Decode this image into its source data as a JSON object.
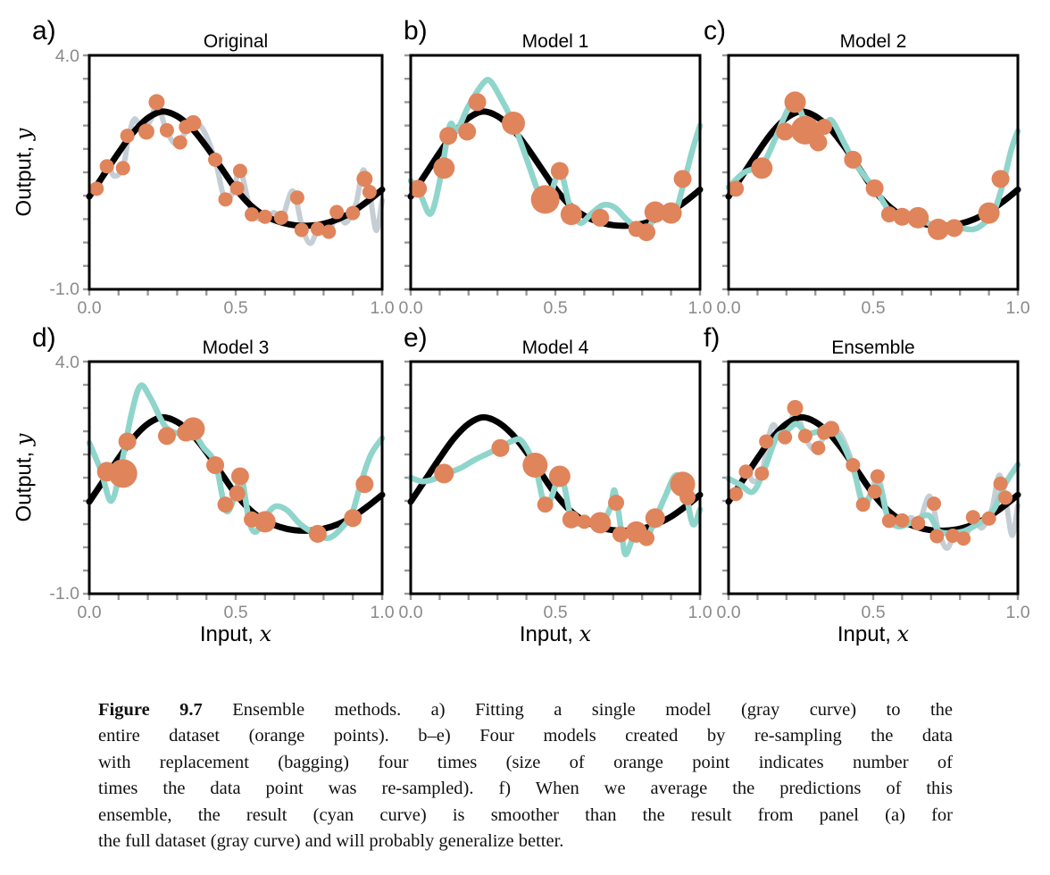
{
  "colors": {
    "black_curve": "#000000",
    "gray_curve": "#c6ced5",
    "cyan_curve": "#8fd5cc",
    "point_fill": "#e0845b",
    "axis": "#000000",
    "tick": "#999999",
    "tick_label": "#8a8a8a"
  },
  "axes": {
    "xlim": [
      0,
      1
    ],
    "ylim": [
      -1,
      4
    ],
    "x_tick_labels": [
      "0.0",
      "0.5",
      "1.0"
    ],
    "y_tick_top": "4.0",
    "y_tick_bottom": "-1.0",
    "x_minor_step": 0.1,
    "y_minor_step": 0.5,
    "xlabel_text": "Input, ",
    "xlabel_var": "x",
    "ylabel_text": "Output, ",
    "ylabel_var": "y"
  },
  "shared_curves": {
    "true_function": [
      [
        0,
        0.98
      ],
      [
        0.05,
        1.45
      ],
      [
        0.1,
        1.92
      ],
      [
        0.15,
        2.35
      ],
      [
        0.2,
        2.66
      ],
      [
        0.25,
        2.8
      ],
      [
        0.3,
        2.7
      ],
      [
        0.35,
        2.44
      ],
      [
        0.4,
        2.05
      ],
      [
        0.45,
        1.6
      ],
      [
        0.5,
        1.15
      ],
      [
        0.55,
        0.8
      ],
      [
        0.6,
        0.57
      ],
      [
        0.65,
        0.44
      ],
      [
        0.7,
        0.37
      ],
      [
        0.75,
        0.36
      ],
      [
        0.8,
        0.4
      ],
      [
        0.85,
        0.5
      ],
      [
        0.9,
        0.66
      ],
      [
        0.95,
        0.88
      ],
      [
        1,
        1.13
      ]
    ],
    "gray_fit": [
      [
        0,
        1.0
      ],
      [
        0.03,
        1.18
      ],
      [
        0.06,
        1.66
      ],
      [
        0.085,
        1.42
      ],
      [
        0.115,
        1.6
      ],
      [
        0.135,
        2.28
      ],
      [
        0.155,
        2.64
      ],
      [
        0.18,
        2.4
      ],
      [
        0.21,
        2.62
      ],
      [
        0.232,
        2.98
      ],
      [
        0.26,
        2.45
      ],
      [
        0.29,
        2.12
      ],
      [
        0.315,
        2.22
      ],
      [
        0.34,
        2.5
      ],
      [
        0.36,
        2.56
      ],
      [
        0.39,
        2.4
      ],
      [
        0.43,
        1.76
      ],
      [
        0.463,
        0.9
      ],
      [
        0.49,
        1.08
      ],
      [
        0.515,
        1.54
      ],
      [
        0.545,
        0.82
      ],
      [
        0.567,
        0.55
      ],
      [
        0.6,
        0.5
      ],
      [
        0.63,
        0.64
      ],
      [
        0.658,
        0.52
      ],
      [
        0.695,
        1.1
      ],
      [
        0.727,
        0.33
      ],
      [
        0.755,
        -0.02
      ],
      [
        0.785,
        0.32
      ],
      [
        0.818,
        0.22
      ],
      [
        0.848,
        0.66
      ],
      [
        0.875,
        0.42
      ],
      [
        0.91,
        0.82
      ],
      [
        0.935,
        1.55
      ],
      [
        0.958,
        1.02
      ],
      [
        0.98,
        0.26
      ],
      [
        1,
        0.9
      ]
    ],
    "model_1": [
      [
        0,
        1.32
      ],
      [
        0.035,
        1.0
      ],
      [
        0.07,
        0.62
      ],
      [
        0.105,
        1.45
      ],
      [
        0.135,
        2.5
      ],
      [
        0.16,
        2.4
      ],
      [
        0.2,
        2.92
      ],
      [
        0.25,
        3.4
      ],
      [
        0.275,
        3.45
      ],
      [
        0.31,
        3.1
      ],
      [
        0.355,
        2.55
      ],
      [
        0.4,
        1.8
      ],
      [
        0.44,
        1.1
      ],
      [
        0.47,
        0.82
      ],
      [
        0.515,
        1.5
      ],
      [
        0.55,
        0.78
      ],
      [
        0.585,
        0.42
      ],
      [
        0.625,
        0.62
      ],
      [
        0.665,
        0.8
      ],
      [
        0.705,
        0.75
      ],
      [
        0.745,
        0.5
      ],
      [
        0.785,
        0.3
      ],
      [
        0.818,
        0.26
      ],
      [
        0.848,
        0.62
      ],
      [
        0.885,
        0.68
      ],
      [
        0.915,
        0.66
      ],
      [
        0.945,
        1.3
      ],
      [
        0.975,
        2.0
      ],
      [
        1,
        2.5
      ]
    ],
    "model_2": [
      [
        0,
        1.18
      ],
      [
        0.05,
        1.48
      ],
      [
        0.09,
        1.58
      ],
      [
        0.118,
        1.65
      ],
      [
        0.16,
        2.2
      ],
      [
        0.2,
        2.78
      ],
      [
        0.23,
        3.05
      ],
      [
        0.268,
        2.5
      ],
      [
        0.3,
        2.12
      ],
      [
        0.335,
        2.5
      ],
      [
        0.358,
        2.6
      ],
      [
        0.4,
        2.12
      ],
      [
        0.43,
        1.78
      ],
      [
        0.47,
        1.42
      ],
      [
        0.51,
        1.12
      ],
      [
        0.558,
        0.66
      ],
      [
        0.61,
        0.53
      ],
      [
        0.665,
        0.5
      ],
      [
        0.725,
        0.3
      ],
      [
        0.785,
        0.32
      ],
      [
        0.845,
        0.28
      ],
      [
        0.885,
        0.42
      ],
      [
        0.915,
        0.62
      ],
      [
        0.948,
        1.25
      ],
      [
        0.978,
        2.0
      ],
      [
        1,
        2.38
      ]
    ],
    "model_3": [
      [
        0,
        2.25
      ],
      [
        0.04,
        1.65
      ],
      [
        0.075,
        1.0
      ],
      [
        0.11,
        1.8
      ],
      [
        0.145,
        2.9
      ],
      [
        0.175,
        3.48
      ],
      [
        0.21,
        3.2
      ],
      [
        0.26,
        2.6
      ],
      [
        0.31,
        2.45
      ],
      [
        0.35,
        2.5
      ],
      [
        0.39,
        2.15
      ],
      [
        0.432,
        1.78
      ],
      [
        0.468,
        0.78
      ],
      [
        0.503,
        1.25
      ],
      [
        0.518,
        1.6
      ],
      [
        0.545,
        0.6
      ],
      [
        0.568,
        0.33
      ],
      [
        0.6,
        0.65
      ],
      [
        0.635,
        0.88
      ],
      [
        0.675,
        0.8
      ],
      [
        0.72,
        0.5
      ],
      [
        0.77,
        0.3
      ],
      [
        0.818,
        0.2
      ],
      [
        0.862,
        0.42
      ],
      [
        0.898,
        0.75
      ],
      [
        0.928,
        1.4
      ],
      [
        0.962,
        2.0
      ],
      [
        1,
        2.35
      ]
    ],
    "model_4": [
      [
        0,
        1.5
      ],
      [
        0.04,
        1.42
      ],
      [
        0.08,
        1.47
      ],
      [
        0.115,
        1.57
      ],
      [
        0.17,
        1.7
      ],
      [
        0.22,
        1.88
      ],
      [
        0.27,
        2.03
      ],
      [
        0.31,
        2.15
      ],
      [
        0.355,
        2.3
      ],
      [
        0.385,
        2.28
      ],
      [
        0.43,
        1.75
      ],
      [
        0.468,
        0.88
      ],
      [
        0.518,
        1.52
      ],
      [
        0.553,
        0.68
      ],
      [
        0.585,
        0.5
      ],
      [
        0.62,
        0.55
      ],
      [
        0.658,
        0.5
      ],
      [
        0.69,
        0.85
      ],
      [
        0.705,
        1.22
      ],
      [
        0.728,
        0.35
      ],
      [
        0.742,
        -0.15
      ],
      [
        0.765,
        0.15
      ],
      [
        0.785,
        0.33
      ],
      [
        0.81,
        0.13
      ],
      [
        0.845,
        0.6
      ],
      [
        0.88,
        1.1
      ],
      [
        0.915,
        1.55
      ],
      [
        0.945,
        1.33
      ],
      [
        0.975,
        0.5
      ],
      [
        1,
        0.82
      ]
    ],
    "ensemble": [
      [
        0,
        1.48
      ],
      [
        0.04,
        1.35
      ],
      [
        0.085,
        1.2
      ],
      [
        0.125,
        1.7
      ],
      [
        0.165,
        2.36
      ],
      [
        0.2,
        2.5
      ],
      [
        0.235,
        2.66
      ],
      [
        0.27,
        2.46
      ],
      [
        0.31,
        2.5
      ],
      [
        0.345,
        2.6
      ],
      [
        0.385,
        2.33
      ],
      [
        0.43,
        1.72
      ],
      [
        0.467,
        0.98
      ],
      [
        0.518,
        1.36
      ],
      [
        0.55,
        0.65
      ],
      [
        0.585,
        0.45
      ],
      [
        0.63,
        0.53
      ],
      [
        0.69,
        0.69
      ],
      [
        0.727,
        0.35
      ],
      [
        0.772,
        0.31
      ],
      [
        0.81,
        0.34
      ],
      [
        0.845,
        0.44
      ],
      [
        0.885,
        0.6
      ],
      [
        0.92,
        0.85
      ],
      [
        0.955,
        1.35
      ],
      [
        1,
        1.78
      ]
    ]
  },
  "chart_data": [
    {
      "type": "line+scatter",
      "letter": "a)",
      "title": "Original",
      "show_y_labels": true,
      "curves": [
        {
          "ref": "gray_fit",
          "color": "gray_curve",
          "width": 6
        },
        {
          "ref": "true_function",
          "color": "black_curve",
          "width": 7
        }
      ],
      "scatter": [
        [
          0.025,
          1.15,
          8
        ],
        [
          0.06,
          1.63,
          8
        ],
        [
          0.115,
          1.59,
          8
        ],
        [
          0.13,
          2.28,
          8
        ],
        [
          0.195,
          2.37,
          9
        ],
        [
          0.23,
          3.0,
          9
        ],
        [
          0.265,
          2.4,
          8
        ],
        [
          0.31,
          2.14,
          8
        ],
        [
          0.33,
          2.47,
          8
        ],
        [
          0.355,
          2.55,
          9
        ],
        [
          0.43,
          1.77,
          8
        ],
        [
          0.465,
          0.92,
          8
        ],
        [
          0.505,
          1.16,
          8
        ],
        [
          0.515,
          1.53,
          8
        ],
        [
          0.555,
          0.6,
          8
        ],
        [
          0.6,
          0.55,
          8
        ],
        [
          0.655,
          0.53,
          8
        ],
        [
          0.71,
          0.96,
          8
        ],
        [
          0.725,
          0.27,
          8
        ],
        [
          0.78,
          0.29,
          8
        ],
        [
          0.818,
          0.23,
          8
        ],
        [
          0.845,
          0.65,
          8
        ],
        [
          0.9,
          0.63,
          8
        ],
        [
          0.94,
          1.36,
          9
        ],
        [
          0.957,
          1.08,
          8
        ]
      ]
    },
    {
      "type": "line+scatter",
      "letter": "b)",
      "title": "Model 1",
      "show_y_labels": false,
      "curves": [
        {
          "ref": "true_function",
          "color": "black_curve",
          "width": 7
        },
        {
          "ref": "model_1",
          "color": "cyan_curve",
          "width": 6.5
        }
      ],
      "scatter": [
        [
          0.025,
          1.15,
          10
        ],
        [
          0.115,
          1.59,
          12
        ],
        [
          0.13,
          2.28,
          10
        ],
        [
          0.195,
          2.37,
          10
        ],
        [
          0.23,
          3.0,
          10
        ],
        [
          0.355,
          2.55,
          13
        ],
        [
          0.465,
          0.92,
          16
        ],
        [
          0.515,
          1.53,
          10
        ],
        [
          0.555,
          0.6,
          12
        ],
        [
          0.655,
          0.53,
          10
        ],
        [
          0.78,
          0.29,
          9
        ],
        [
          0.815,
          0.22,
          10
        ],
        [
          0.845,
          0.65,
          12
        ],
        [
          0.9,
          0.63,
          12
        ],
        [
          0.94,
          1.36,
          10
        ]
      ]
    },
    {
      "type": "line+scatter",
      "letter": "c)",
      "title": "Model 2",
      "show_y_labels": false,
      "curves": [
        {
          "ref": "true_function",
          "color": "black_curve",
          "width": 7
        },
        {
          "ref": "model_2",
          "color": "cyan_curve",
          "width": 6.5
        }
      ],
      "scatter": [
        [
          0.025,
          1.15,
          9
        ],
        [
          0.115,
          1.59,
          12
        ],
        [
          0.195,
          2.37,
          10
        ],
        [
          0.23,
          3.0,
          12
        ],
        [
          0.265,
          2.4,
          16
        ],
        [
          0.31,
          2.14,
          10
        ],
        [
          0.33,
          2.47,
          9
        ],
        [
          0.43,
          1.77,
          10
        ],
        [
          0.505,
          1.16,
          10
        ],
        [
          0.555,
          0.6,
          9
        ],
        [
          0.6,
          0.55,
          10
        ],
        [
          0.655,
          0.53,
          12
        ],
        [
          0.725,
          0.28,
          12
        ],
        [
          0.78,
          0.31,
          10
        ],
        [
          0.9,
          0.63,
          12
        ],
        [
          0.94,
          1.36,
          10
        ]
      ]
    },
    {
      "type": "line+scatter",
      "letter": "d)",
      "title": "Model 3",
      "show_y_labels": true,
      "curves": [
        {
          "ref": "true_function",
          "color": "black_curve",
          "width": 7
        },
        {
          "ref": "model_3",
          "color": "cyan_curve",
          "width": 6.5
        }
      ],
      "scatter": [
        [
          0.06,
          1.63,
          11
        ],
        [
          0.115,
          1.59,
          16
        ],
        [
          0.13,
          2.28,
          10
        ],
        [
          0.265,
          2.4,
          10
        ],
        [
          0.33,
          2.47,
          10
        ],
        [
          0.355,
          2.55,
          13
        ],
        [
          0.43,
          1.77,
          10
        ],
        [
          0.465,
          0.92,
          9
        ],
        [
          0.505,
          1.16,
          9
        ],
        [
          0.515,
          1.53,
          10
        ],
        [
          0.555,
          0.6,
          9
        ],
        [
          0.6,
          0.55,
          12
        ],
        [
          0.78,
          0.29,
          10
        ],
        [
          0.9,
          0.63,
          10
        ],
        [
          0.94,
          1.36,
          10
        ]
      ]
    },
    {
      "type": "line+scatter",
      "letter": "e)",
      "title": "Model 4",
      "show_y_labels": false,
      "curves": [
        {
          "ref": "true_function",
          "color": "black_curve",
          "width": 7
        },
        {
          "ref": "model_4",
          "color": "cyan_curve",
          "width": 6.5
        }
      ],
      "scatter": [
        [
          0.115,
          1.59,
          11
        ],
        [
          0.31,
          2.14,
          10
        ],
        [
          0.43,
          1.77,
          14
        ],
        [
          0.465,
          0.92,
          9
        ],
        [
          0.515,
          1.53,
          12
        ],
        [
          0.555,
          0.6,
          10
        ],
        [
          0.6,
          0.55,
          8
        ],
        [
          0.655,
          0.53,
          12
        ],
        [
          0.71,
          0.96,
          9
        ],
        [
          0.725,
          0.28,
          9
        ],
        [
          0.78,
          0.33,
          12
        ],
        [
          0.815,
          0.2,
          9
        ],
        [
          0.845,
          0.63,
          11
        ],
        [
          0.94,
          1.36,
          14
        ],
        [
          0.957,
          1.08,
          9
        ]
      ]
    },
    {
      "type": "line+scatter",
      "letter": "f)",
      "title": "Ensemble",
      "show_y_labels": false,
      "curves": [
        {
          "ref": "gray_fit",
          "color": "gray_curve",
          "width": 6
        },
        {
          "ref": "true_function",
          "color": "black_curve",
          "width": 7
        },
        {
          "ref": "ensemble",
          "color": "cyan_curve",
          "width": 6.5
        }
      ],
      "scatter": [
        [
          0.025,
          1.15,
          8
        ],
        [
          0.06,
          1.63,
          8
        ],
        [
          0.115,
          1.59,
          8
        ],
        [
          0.13,
          2.28,
          8
        ],
        [
          0.195,
          2.37,
          8
        ],
        [
          0.23,
          3.0,
          9
        ],
        [
          0.265,
          2.4,
          8
        ],
        [
          0.31,
          2.14,
          8
        ],
        [
          0.33,
          2.47,
          8
        ],
        [
          0.355,
          2.55,
          9
        ],
        [
          0.43,
          1.77,
          8
        ],
        [
          0.465,
          0.92,
          8
        ],
        [
          0.505,
          1.2,
          8
        ],
        [
          0.515,
          1.53,
          8
        ],
        [
          0.555,
          0.57,
          8
        ],
        [
          0.6,
          0.58,
          8
        ],
        [
          0.655,
          0.52,
          8
        ],
        [
          0.71,
          0.94,
          8
        ],
        [
          0.72,
          0.24,
          8
        ],
        [
          0.775,
          0.25,
          8
        ],
        [
          0.812,
          0.19,
          8
        ],
        [
          0.845,
          0.65,
          8
        ],
        [
          0.9,
          0.62,
          8
        ],
        [
          0.94,
          1.37,
          8
        ],
        [
          0.957,
          1.07,
          8
        ]
      ]
    }
  ],
  "caption": {
    "label": "Figure 9.7",
    "lines": [
      " Ensemble methods.  a) Fitting a single model (gray curve) to the",
      "entire dataset (orange points). b–e) Four models created by re-sampling the data",
      "with replacement (bagging) four times (size of orange point indicates number of",
      "times the data point was re-sampled). f) When we average the predictions of this",
      "ensemble, the result (cyan curve) is smoother than the result from panel (a) for",
      "the full dataset (gray curve) and will probably generalize better."
    ]
  }
}
